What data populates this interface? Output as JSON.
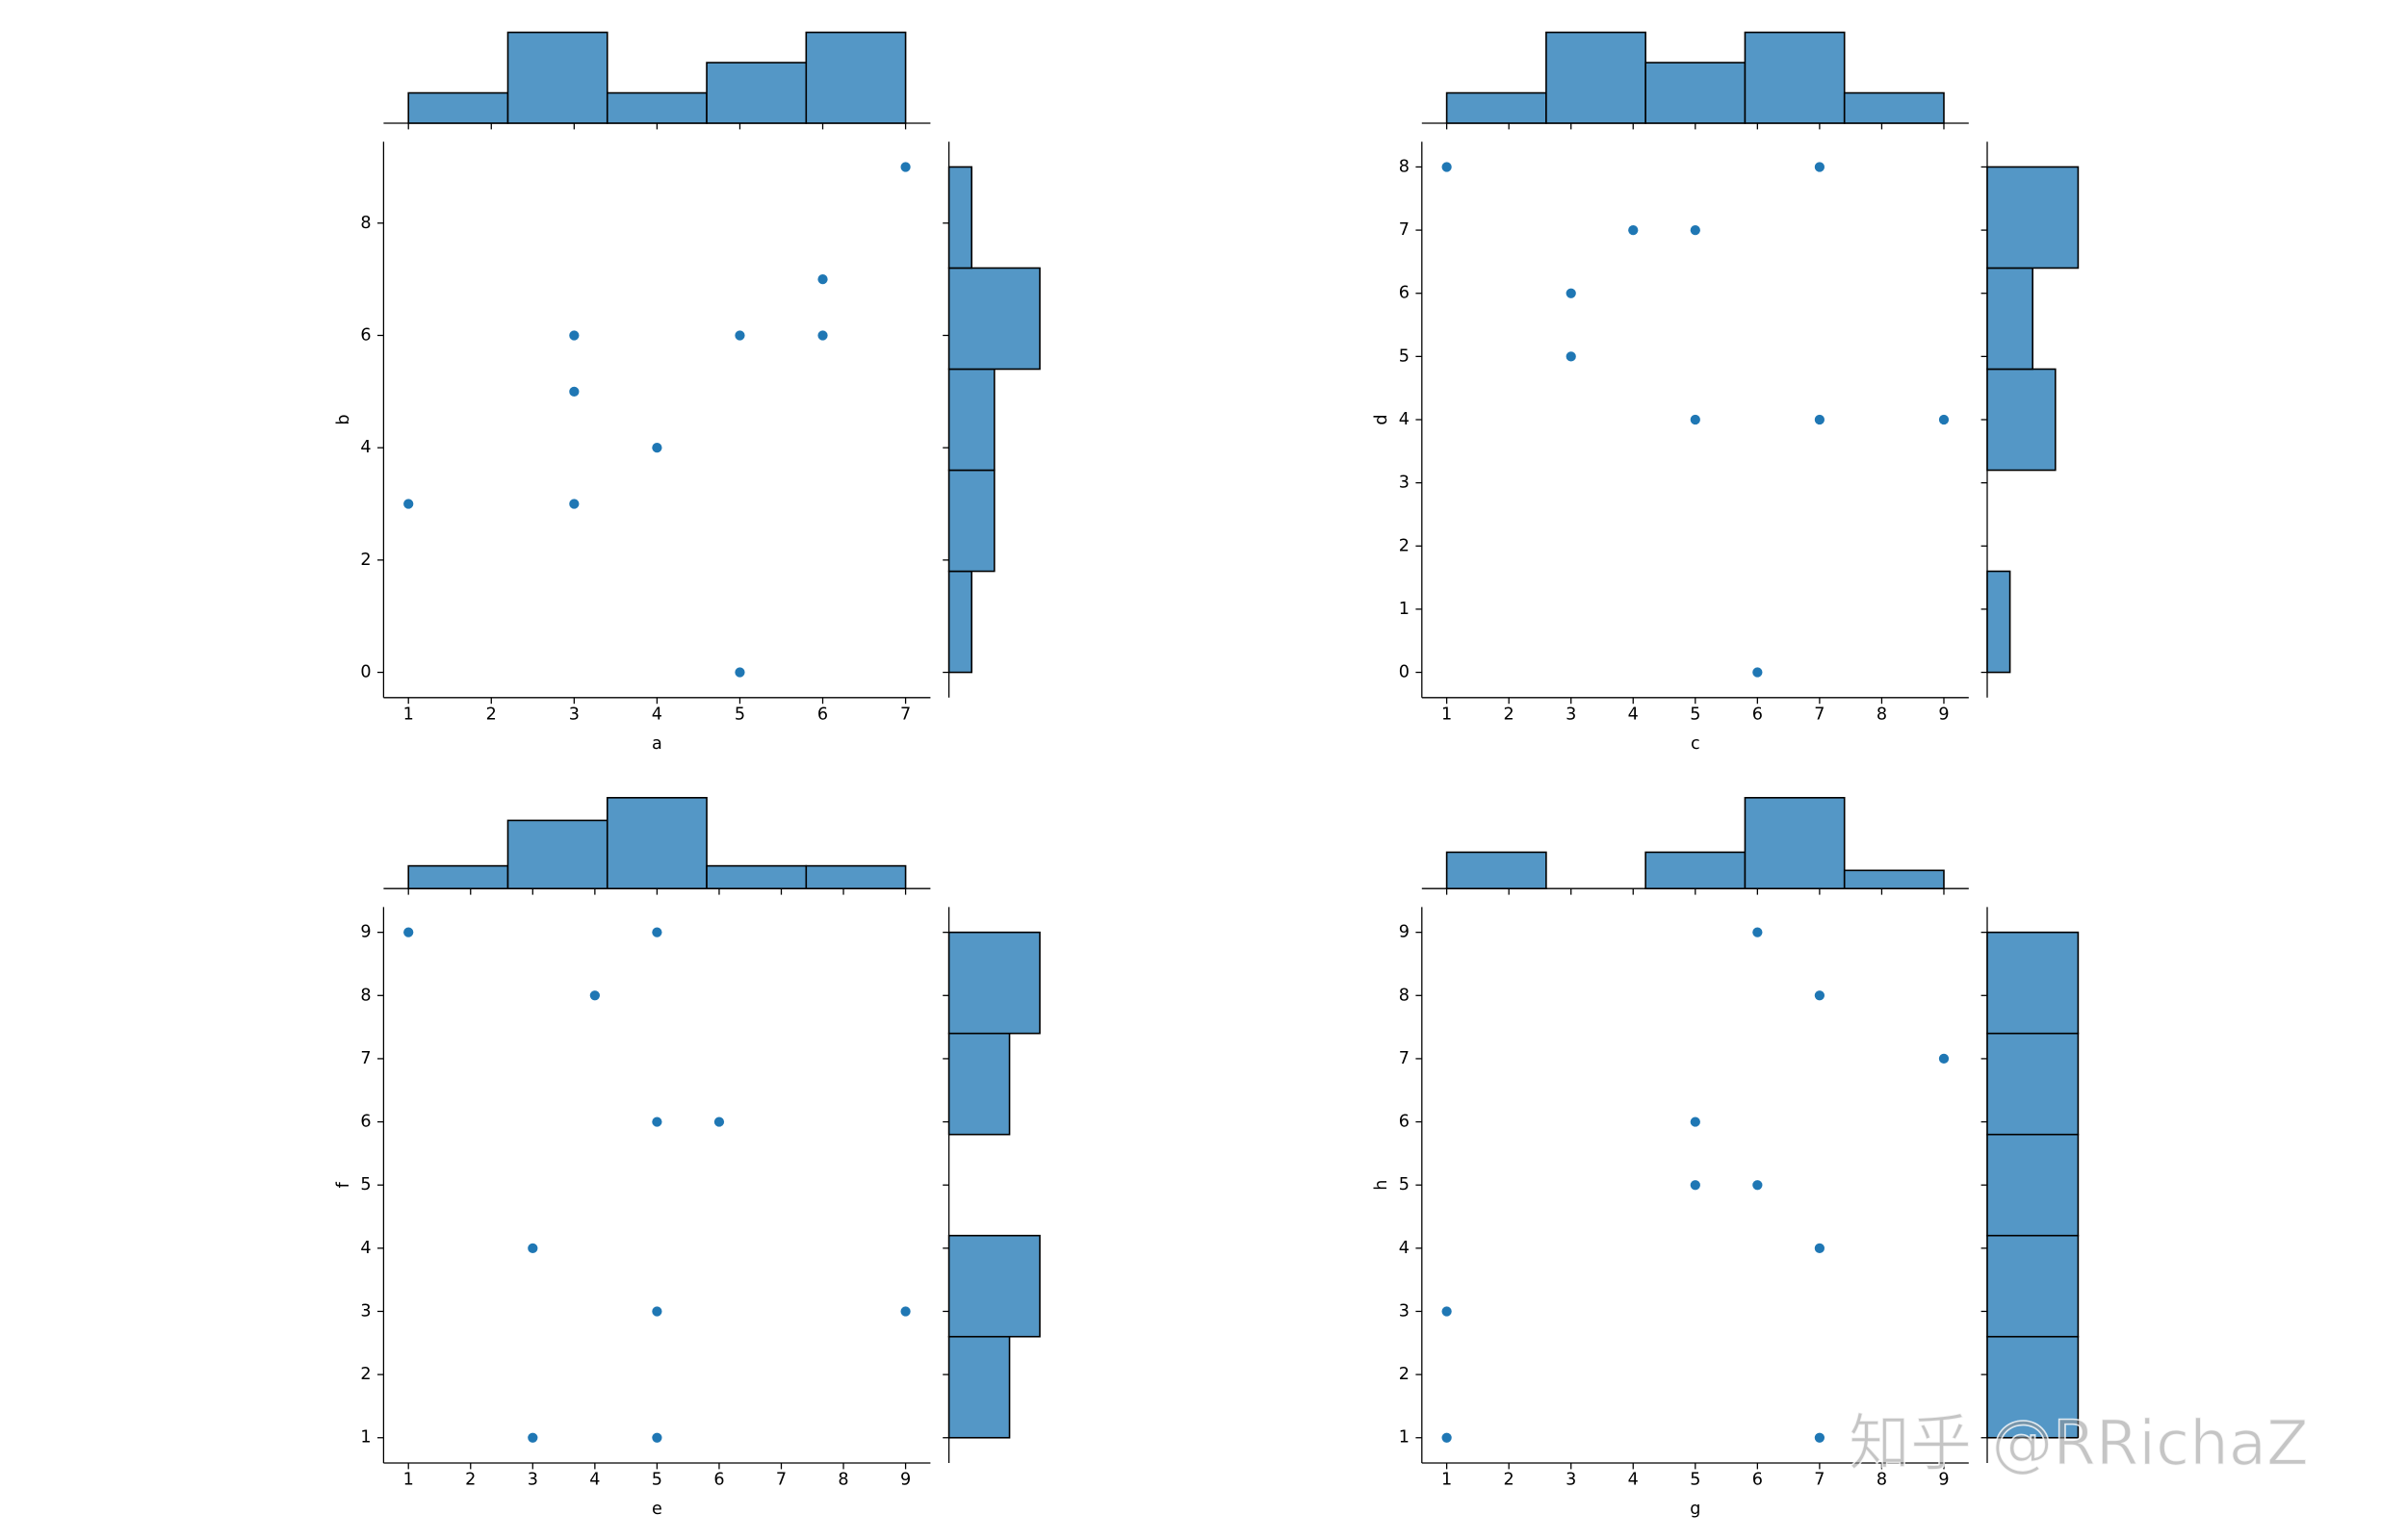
{
  "chart_data": [
    {
      "type": "scatter",
      "xlabel": "a",
      "ylabel": "b",
      "color": "#1f77b4",
      "hist_color": "#5497c6",
      "x": [
        1,
        3,
        3,
        3,
        4,
        5,
        5,
        6,
        6,
        7
      ],
      "y": [
        3,
        6,
        5,
        3,
        4,
        6,
        0,
        7,
        6,
        9
      ],
      "xlim": [
        0.7,
        7.3
      ],
      "ylim": [
        -0.45,
        9.45
      ],
      "xticks": [
        1,
        2,
        3,
        4,
        5,
        6,
        7
      ],
      "yticks": [
        0,
        2,
        4,
        6,
        8
      ],
      "top_hist": {
        "bins": [
          1,
          2.2,
          3.4,
          4.6,
          5.8,
          7
        ],
        "counts": [
          1,
          3,
          1,
          2,
          3
        ]
      },
      "right_hist": {
        "bins": [
          0,
          1.8,
          3.6,
          5.4,
          7.2,
          9
        ],
        "counts": [
          1,
          2,
          2,
          4,
          1
        ]
      }
    },
    {
      "type": "scatter",
      "xlabel": "c",
      "ylabel": "d",
      "color": "#1f77b4",
      "hist_color": "#5497c6",
      "x": [
        1,
        3,
        3,
        4,
        5,
        5,
        6,
        7,
        7,
        9
      ],
      "y": [
        8,
        6,
        5,
        7,
        7,
        4,
        0,
        8,
        4,
        4
      ],
      "xlim": [
        0.6,
        9.4
      ],
      "ylim": [
        -0.4,
        8.4
      ],
      "xticks": [
        1,
        2,
        3,
        4,
        5,
        6,
        7,
        8,
        9
      ],
      "yticks": [
        0,
        1,
        2,
        3,
        4,
        5,
        6,
        7,
        8
      ],
      "top_hist": {
        "bins": [
          1,
          2.6,
          4.2,
          5.8,
          7.4,
          9
        ],
        "counts": [
          1,
          3,
          2,
          3,
          1
        ]
      },
      "right_hist": {
        "bins": [
          0,
          1.6,
          3.2,
          4.8,
          6.4,
          8
        ],
        "counts": [
          1,
          0,
          3,
          2,
          4
        ]
      }
    },
    {
      "type": "scatter",
      "xlabel": "e",
      "ylabel": "f",
      "color": "#1f77b4",
      "hist_color": "#5497c6",
      "x": [
        1,
        5,
        4,
        5,
        6,
        3,
        5,
        9,
        3,
        5
      ],
      "y": [
        9,
        9,
        8,
        6,
        6,
        4,
        3,
        3,
        1,
        1
      ],
      "xlim": [
        0.6,
        9.4
      ],
      "ylim": [
        0.6,
        9.4
      ],
      "xticks": [
        1,
        2,
        3,
        4,
        5,
        6,
        7,
        8,
        9
      ],
      "yticks": [
        1,
        2,
        3,
        4,
        5,
        6,
        7,
        8,
        9
      ],
      "top_hist": {
        "bins": [
          1,
          2.6,
          4.2,
          5.8,
          7.4,
          9
        ],
        "counts": [
          1,
          3,
          4,
          1,
          1
        ]
      },
      "right_hist": {
        "bins": [
          1,
          2.6,
          4.2,
          5.8,
          7.4,
          9
        ],
        "counts": [
          2,
          3,
          0,
          2,
          3
        ]
      }
    },
    {
      "type": "scatter",
      "xlabel": "g",
      "ylabel": "h",
      "color": "#1f77b4",
      "hist_color": "#5497c6",
      "x": [
        6,
        7,
        9,
        5,
        5,
        6,
        7,
        1,
        1,
        7
      ],
      "y": [
        9,
        8,
        7,
        6,
        5,
        5,
        4,
        3,
        1,
        1
      ],
      "xlim": [
        0.6,
        9.4
      ],
      "ylim": [
        0.6,
        9.4
      ],
      "xticks": [
        1,
        2,
        3,
        4,
        5,
        6,
        7,
        8,
        9
      ],
      "yticks": [
        1,
        2,
        3,
        4,
        5,
        6,
        7,
        8,
        9
      ],
      "top_hist": {
        "bins": [
          1,
          2.6,
          4.2,
          5.8,
          7.4,
          9
        ],
        "counts": [
          2,
          0,
          2,
          5,
          1
        ]
      },
      "right_hist": {
        "bins": [
          1,
          2.6,
          4.2,
          5.8,
          7.4,
          9
        ],
        "counts": [
          2,
          2,
          2,
          2,
          2
        ]
      }
    }
  ],
  "watermark": "知乎 @RRichaZ"
}
